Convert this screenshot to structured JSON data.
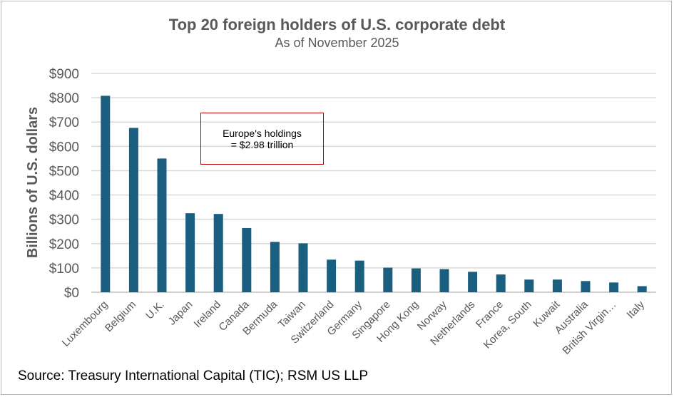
{
  "chart_data": {
    "type": "bar",
    "title": "Top 20 foreign holders of U.S. corporate debt",
    "subtitle": "As of November 2025",
    "xlabel": "",
    "ylabel": "Billions of U.S. dollars",
    "ylim": [
      0,
      900
    ],
    "yticks": [
      0,
      100,
      200,
      300,
      400,
      500,
      600,
      700,
      800,
      900
    ],
    "ytick_labels": [
      "$0",
      "$100",
      "$200",
      "$300",
      "$400",
      "$500",
      "$600",
      "$700",
      "$800",
      "$900"
    ],
    "categories": [
      "Luxembourg",
      "Belgium",
      "U.K.",
      "Japan",
      "Ireland",
      "Canada",
      "Bermuda",
      "Taiwan",
      "Switzerland",
      "Germany",
      "Singapore",
      "Hong Kong",
      "Norway",
      "Netherlands",
      "France",
      "Korea, South",
      "Kuwait",
      "Australia",
      "British Virgin…",
      "Italy"
    ],
    "values": [
      808,
      676,
      550,
      325,
      322,
      264,
      207,
      201,
      134,
      130,
      101,
      98,
      95,
      84,
      73,
      52,
      52,
      46,
      40,
      25
    ],
    "bar_color": "#1a5e80",
    "grid": true,
    "legend": "none",
    "annotation": {
      "line1": "Europe's holdings",
      "line2": "= $2.98 trillion",
      "border_color": "#c00000"
    }
  },
  "source": "Source: Treasury International Capital (TIC); RSM US LLP"
}
